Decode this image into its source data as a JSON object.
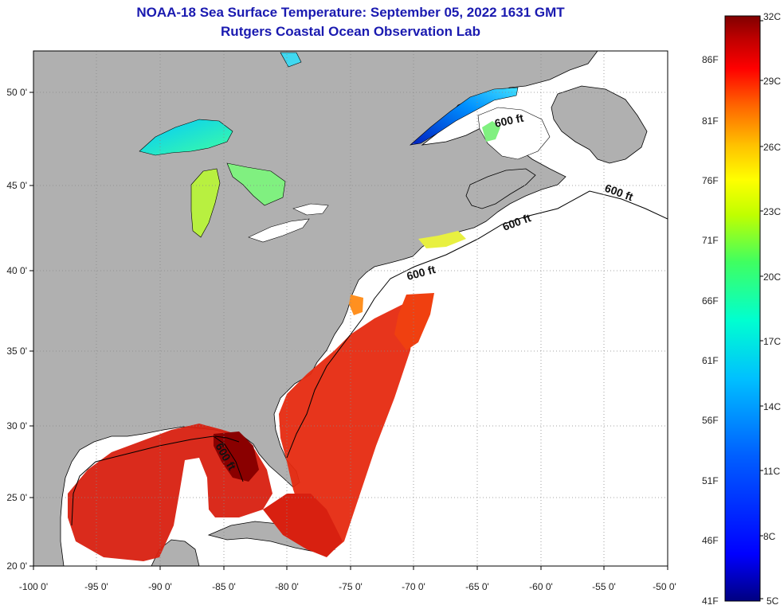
{
  "header": {
    "title": "NOAA-18 Sea Surface Temperature:  September 05, 2022 1631 GMT",
    "subtitle": "Rutgers Coastal Ocean Observation Lab"
  },
  "map": {
    "lon_ticks": [
      "-100 0'",
      "-95 0'",
      "-90 0'",
      "-85 0'",
      "-80 0'",
      "-75 0'",
      "-70 0'",
      "-65 0'",
      "-60 0'",
      "-55 0'",
      "-50 0'"
    ],
    "lat_ticks": [
      "50 0'",
      "45 0'",
      "40 0'",
      "35 0'",
      "30 0'",
      "25 0'",
      "20 0'"
    ],
    "contour_labels": [
      "600 ft",
      "600 ft",
      "600 ft",
      "600 ft",
      "600 ft"
    ]
  },
  "colorbar": {
    "celsius_labels": [
      "32C",
      "29C",
      "26C",
      "23C",
      "20C",
      "17C",
      "14C",
      "11C",
      "8C",
      "5C"
    ],
    "fahrenheit_labels": [
      "86F",
      "81F",
      "76F",
      "71F",
      "66F",
      "61F",
      "56F",
      "51F",
      "46F",
      "41F"
    ],
    "colors": [
      "#000080",
      "#0000ff",
      "#0060ff",
      "#00c0ff",
      "#00ffd0",
      "#40ff60",
      "#c0ff00",
      "#ffff00",
      "#ffc000",
      "#ff6000",
      "#ff0000",
      "#c00000",
      "#800000"
    ]
  }
}
